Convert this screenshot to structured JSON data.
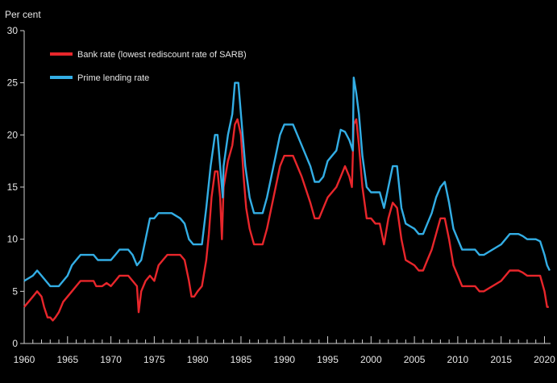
{
  "chart_data": {
    "type": "line",
    "title": "",
    "unit_label": "Per cent",
    "xlabel": "",
    "ylabel": "",
    "xlim": [
      1960,
      2020.7
    ],
    "ylim": [
      0,
      30
    ],
    "y_ticks": [
      0,
      5,
      10,
      15,
      20,
      25,
      30
    ],
    "x_ticks": [
      1960,
      1965,
      1970,
      1975,
      1980,
      1985,
      1990,
      1995,
      2000,
      2005,
      2010,
      2015,
      2020
    ],
    "grid": false,
    "legend_position": "top-left",
    "series": [
      {
        "name": "Bank rate (lowest rediscount rate of SARB)",
        "color": "#e8262b",
        "points": [
          [
            1960,
            3.5
          ],
          [
            1960.5,
            4
          ],
          [
            1961,
            4.5
          ],
          [
            1961.5,
            5
          ],
          [
            1962,
            4.5
          ],
          [
            1962.3,
            3.5
          ],
          [
            1962.7,
            2.5
          ],
          [
            1963,
            2.5
          ],
          [
            1963.3,
            2.2
          ],
          [
            1963.6,
            2.5
          ],
          [
            1964,
            3
          ],
          [
            1964.5,
            4
          ],
          [
            1965,
            4.5
          ],
          [
            1965.5,
            5
          ],
          [
            1966,
            5.5
          ],
          [
            1966.5,
            6
          ],
          [
            1968,
            6
          ],
          [
            1968.3,
            5.5
          ],
          [
            1969,
            5.5
          ],
          [
            1969.5,
            5.8
          ],
          [
            1970,
            5.5
          ],
          [
            1970.5,
            6
          ],
          [
            1971,
            6.5
          ],
          [
            1972,
            6.5
          ],
          [
            1972.5,
            6
          ],
          [
            1973,
            5.5
          ],
          [
            1973.2,
            3
          ],
          [
            1973.5,
            5
          ],
          [
            1974,
            6
          ],
          [
            1974.5,
            6.5
          ],
          [
            1975,
            6
          ],
          [
            1975.5,
            7.5
          ],
          [
            1976,
            8
          ],
          [
            1976.5,
            8.5
          ],
          [
            1977,
            8.5
          ],
          [
            1978,
            8.5
          ],
          [
            1978.5,
            8
          ],
          [
            1979,
            6
          ],
          [
            1979.3,
            4.5
          ],
          [
            1979.6,
            4.5
          ],
          [
            1980,
            5
          ],
          [
            1980.5,
            5.5
          ],
          [
            1981,
            8
          ],
          [
            1981.3,
            10.5
          ],
          [
            1981.6,
            14
          ],
          [
            1982,
            16.5
          ],
          [
            1982.3,
            16.5
          ],
          [
            1982.6,
            14
          ],
          [
            1982.8,
            10
          ],
          [
            1983,
            15
          ],
          [
            1983.5,
            17.5
          ],
          [
            1984,
            19
          ],
          [
            1984.3,
            21
          ],
          [
            1984.6,
            21.5
          ],
          [
            1985,
            20
          ],
          [
            1985.3,
            16
          ],
          [
            1985.6,
            13
          ],
          [
            1986,
            11
          ],
          [
            1986.5,
            9.5
          ],
          [
            1987,
            9.5
          ],
          [
            1987.5,
            9.5
          ],
          [
            1988,
            11
          ],
          [
            1988.5,
            13
          ],
          [
            1989,
            15
          ],
          [
            1989.5,
            17
          ],
          [
            1990,
            18
          ],
          [
            1991,
            18
          ],
          [
            1991.5,
            17
          ],
          [
            1992,
            16
          ],
          [
            1993,
            13.5
          ],
          [
            1993.5,
            12
          ],
          [
            1994,
            12
          ],
          [
            1994.5,
            13
          ],
          [
            1995,
            14
          ],
          [
            1996,
            15
          ],
          [
            1996.5,
            16
          ],
          [
            1997,
            17
          ],
          [
            1997.5,
            16
          ],
          [
            1997.8,
            15
          ],
          [
            1998,
            21
          ],
          [
            1998.3,
            21.5
          ],
          [
            1998.6,
            19
          ],
          [
            1999,
            15
          ],
          [
            1999.5,
            12
          ],
          [
            2000,
            12
          ],
          [
            2000.5,
            11.5
          ],
          [
            2001,
            11.5
          ],
          [
            2001.5,
            9.5
          ],
          [
            2002,
            12
          ],
          [
            2002.5,
            13.5
          ],
          [
            2003,
            13
          ],
          [
            2003.5,
            10
          ],
          [
            2004,
            8
          ],
          [
            2005,
            7.5
          ],
          [
            2005.5,
            7
          ],
          [
            2006,
            7
          ],
          [
            2006.5,
            8
          ],
          [
            2007,
            9
          ],
          [
            2007.5,
            10.5
          ],
          [
            2008,
            12
          ],
          [
            2008.5,
            12
          ],
          [
            2009,
            10
          ],
          [
            2009.5,
            7.5
          ],
          [
            2010,
            6.5
          ],
          [
            2010.5,
            5.5
          ],
          [
            2011,
            5.5
          ],
          [
            2012,
            5.5
          ],
          [
            2012.5,
            5
          ],
          [
            2013,
            5
          ],
          [
            2014,
            5.5
          ],
          [
            2015,
            6
          ],
          [
            2015.5,
            6.5
          ],
          [
            2016,
            7
          ],
          [
            2017,
            7
          ],
          [
            2017.5,
            6.8
          ],
          [
            2018,
            6.5
          ],
          [
            2019,
            6.5
          ],
          [
            2019.5,
            6.5
          ],
          [
            2020,
            5
          ],
          [
            2020.3,
            3.5
          ],
          [
            2020.5,
            3.5
          ]
        ]
      },
      {
        "name": "Prime lending rate",
        "color": "#33aee5",
        "points": [
          [
            1960,
            6
          ],
          [
            1961,
            6.5
          ],
          [
            1961.5,
            7
          ],
          [
            1962,
            6.5
          ],
          [
            1962.5,
            6
          ],
          [
            1963,
            5.5
          ],
          [
            1964,
            5.5
          ],
          [
            1964.5,
            6
          ],
          [
            1965,
            6.5
          ],
          [
            1965.5,
            7.5
          ],
          [
            1966,
            8
          ],
          [
            1966.5,
            8.5
          ],
          [
            1968,
            8.5
          ],
          [
            1968.5,
            8
          ],
          [
            1970,
            8
          ],
          [
            1970.5,
            8.5
          ],
          [
            1971,
            9
          ],
          [
            1972,
            9
          ],
          [
            1972.5,
            8.5
          ],
          [
            1973,
            7.5
          ],
          [
            1973.5,
            8
          ],
          [
            1974,
            10
          ],
          [
            1974.5,
            12
          ],
          [
            1975,
            12
          ],
          [
            1975.5,
            12.5
          ],
          [
            1977,
            12.5
          ],
          [
            1978,
            12
          ],
          [
            1978.5,
            11.5
          ],
          [
            1979,
            10
          ],
          [
            1979.5,
            9.5
          ],
          [
            1980,
            9.5
          ],
          [
            1980.5,
            9.5
          ],
          [
            1981,
            13
          ],
          [
            1981.5,
            17
          ],
          [
            1982,
            20
          ],
          [
            1982.3,
            20
          ],
          [
            1982.6,
            17
          ],
          [
            1982.9,
            14
          ],
          [
            1983,
            17
          ],
          [
            1983.5,
            20
          ],
          [
            1984,
            22
          ],
          [
            1984.3,
            25
          ],
          [
            1984.7,
            25
          ],
          [
            1985,
            22
          ],
          [
            1985.5,
            17
          ],
          [
            1986,
            14
          ],
          [
            1986.5,
            12.5
          ],
          [
            1987,
            12.5
          ],
          [
            1987.5,
            12.5
          ],
          [
            1988,
            14
          ],
          [
            1988.5,
            16
          ],
          [
            1989,
            18
          ],
          [
            1989.5,
            20
          ],
          [
            1990,
            21
          ],
          [
            1991,
            21
          ],
          [
            1991.5,
            20
          ],
          [
            1992,
            19
          ],
          [
            1993,
            17
          ],
          [
            1993.5,
            15.5
          ],
          [
            1994,
            15.5
          ],
          [
            1994.5,
            16
          ],
          [
            1995,
            17.5
          ],
          [
            1996,
            18.5
          ],
          [
            1996.5,
            20.5
          ],
          [
            1997,
            20.3
          ],
          [
            1997.5,
            19.5
          ],
          [
            1997.9,
            18.5
          ],
          [
            1998,
            25.5
          ],
          [
            1998.3,
            24
          ],
          [
            1998.6,
            22
          ],
          [
            1999,
            18
          ],
          [
            1999.5,
            15
          ],
          [
            2000,
            14.5
          ],
          [
            2001,
            14.5
          ],
          [
            2001.5,
            13
          ],
          [
            2002,
            15
          ],
          [
            2002.5,
            17
          ],
          [
            2003,
            17
          ],
          [
            2003.5,
            13
          ],
          [
            2004,
            11.5
          ],
          [
            2005,
            11
          ],
          [
            2005.5,
            10.5
          ],
          [
            2006,
            10.5
          ],
          [
            2006.5,
            11.5
          ],
          [
            2007,
            12.5
          ],
          [
            2007.5,
            14
          ],
          [
            2008,
            15
          ],
          [
            2008.5,
            15.5
          ],
          [
            2009,
            13.5
          ],
          [
            2009.5,
            11
          ],
          [
            2010,
            10
          ],
          [
            2010.5,
            9
          ],
          [
            2011,
            9
          ],
          [
            2012,
            9
          ],
          [
            2012.5,
            8.5
          ],
          [
            2013,
            8.5
          ],
          [
            2014,
            9
          ],
          [
            2015,
            9.5
          ],
          [
            2015.5,
            10
          ],
          [
            2016,
            10.5
          ],
          [
            2017,
            10.5
          ],
          [
            2017.5,
            10.3
          ],
          [
            2018,
            10
          ],
          [
            2019,
            10
          ],
          [
            2019.5,
            9.8
          ],
          [
            2020,
            8.5
          ],
          [
            2020.3,
            7.5
          ],
          [
            2020.6,
            7
          ]
        ]
      }
    ]
  }
}
